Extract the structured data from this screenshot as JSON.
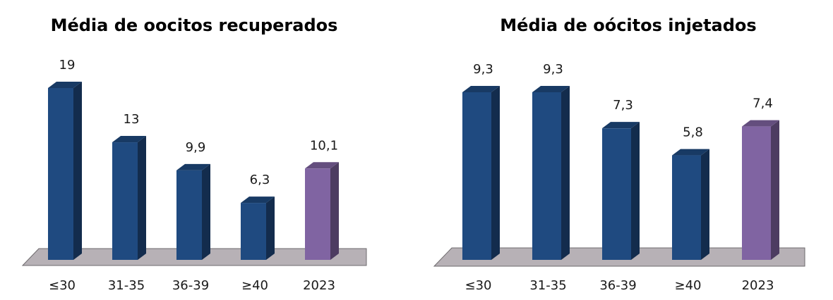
{
  "chart_data": [
    {
      "type": "bar",
      "title": "Média de oocitos recuperados",
      "categories": [
        "≤30",
        "31-35",
        "36-39",
        "≥40",
        "2023"
      ],
      "values": [
        19,
        13,
        9.9,
        6.3,
        10.1
      ],
      "data_labels": [
        "19",
        "13",
        "9,9",
        "6,3",
        "10,1"
      ],
      "bar_colors": [
        "#1f4a80",
        "#1f4a80",
        "#1f4a80",
        "#1f4a80",
        "#8064a2"
      ],
      "ylim": [
        0,
        19
      ],
      "grid": false,
      "style": "3d-column"
    },
    {
      "type": "bar",
      "title": "Média de oócitos injetados",
      "categories": [
        "≤30",
        "31-35",
        "36-39",
        "≥40",
        "2023"
      ],
      "values": [
        9.3,
        9.3,
        7.3,
        5.8,
        7.4
      ],
      "data_labels": [
        "9,3",
        "9,3",
        "7,3",
        "5,8",
        "7,4"
      ],
      "bar_colors": [
        "#1f4a80",
        "#1f4a80",
        "#1f4a80",
        "#1f4a80",
        "#8064a2"
      ],
      "ylim": [
        0,
        9.3
      ],
      "grid": false,
      "style": "3d-column"
    }
  ]
}
